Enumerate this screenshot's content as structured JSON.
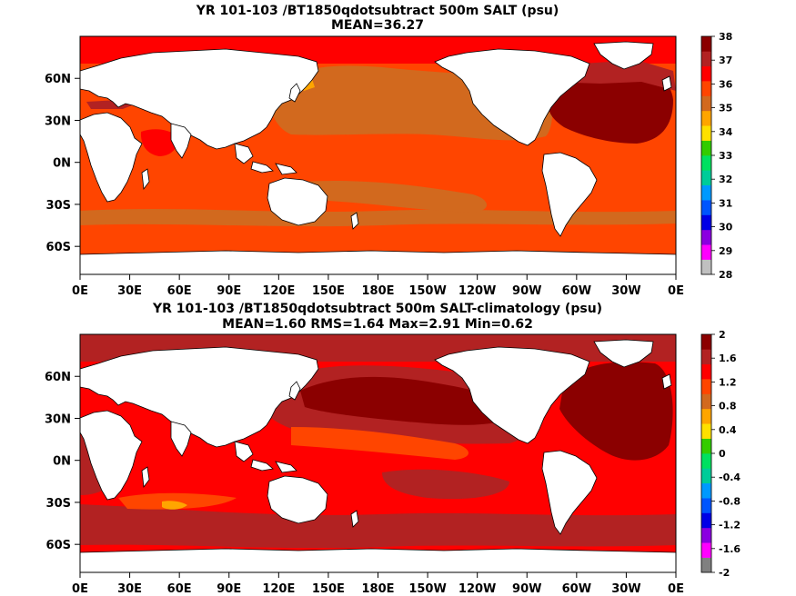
{
  "chart_data": [
    {
      "type": "heatmap",
      "title": "YR 101-103 /BT1850qdotsubtract 500m SALT (psu)",
      "subtitle": "MEAN=36.27",
      "x_ticks": [
        "0E",
        "30E",
        "60E",
        "90E",
        "120E",
        "150E",
        "180E",
        "150W",
        "120W",
        "90W",
        "60W",
        "30W",
        "0E"
      ],
      "y_ticks": [
        "60N",
        "30N",
        "0N",
        "30S",
        "60S"
      ],
      "y_tick_values": [
        60,
        30,
        0,
        -30,
        -60
      ],
      "xlim": [
        0,
        360
      ],
      "ylim": [
        -80,
        90
      ],
      "colorbar": {
        "labels": [
          "38",
          "37",
          "36",
          "35",
          "34",
          "33",
          "32",
          "31",
          "30",
          "29",
          "28"
        ],
        "colors": [
          "#c0c0c0",
          "#ff00ff",
          "#8b00e0",
          "#0000e6",
          "#0055ff",
          "#0099ff",
          "#00cc99",
          "#00e060",
          "#33cc00",
          "#ffe000",
          "#ffa500",
          "#d2691e",
          "#ff4500",
          "#ff0000",
          "#b22222",
          "#8b0000"
        ]
      },
      "regions": [
        {
          "name": "ocean background",
          "value": 36.6,
          "color": "#ff4500"
        },
        {
          "name": "north pacific",
          "value": 35.6,
          "color": "#d2691e"
        },
        {
          "name": "southern ocean band",
          "value": 35.8,
          "color": "#d2691e"
        },
        {
          "name": "north atlantic",
          "value": 37.6,
          "color": "#8b0000"
        },
        {
          "name": "arabian sea",
          "value": 37.0,
          "color": "#ff0000"
        },
        {
          "name": "arctic",
          "value": 37.0,
          "color": "#ff0000"
        }
      ]
    },
    {
      "type": "heatmap",
      "title": "YR 101-103 /BT1850qdotsubtract 500m SALT-climatology (psu)",
      "subtitle": "MEAN=1.60   RMS=1.64   Max=2.91   Min=0.62",
      "x_ticks": [
        "0E",
        "30E",
        "60E",
        "90E",
        "120E",
        "150E",
        "180E",
        "150W",
        "120W",
        "90W",
        "60W",
        "30W",
        "0E"
      ],
      "y_ticks": [
        "60N",
        "30N",
        "0N",
        "30S",
        "60S"
      ],
      "y_tick_values": [
        60,
        30,
        0,
        -30,
        -60
      ],
      "xlim": [
        0,
        360
      ],
      "ylim": [
        -80,
        90
      ],
      "colorbar": {
        "labels": [
          "2",
          "1.6",
          "1.2",
          "0.8",
          "0.4",
          "0",
          "-0.4",
          "-0.8",
          "-1.2",
          "-1.6",
          "-2"
        ],
        "colors": [
          "#808080",
          "#ff00ff",
          "#8b00e0",
          "#0000e6",
          "#0055ff",
          "#0099ff",
          "#00cc99",
          "#00e060",
          "#33cc00",
          "#ffe000",
          "#ffa500",
          "#d2691e",
          "#ff4500",
          "#ff0000",
          "#b22222",
          "#8b0000"
        ]
      },
      "regions": [
        {
          "name": "ocean background",
          "value": 1.5,
          "color": "#ff0000"
        },
        {
          "name": "north pacific",
          "value": 1.8,
          "color": "#b22222"
        },
        {
          "name": "north pacific core",
          "value": 2.0,
          "color": "#8b0000"
        },
        {
          "name": "north atlantic",
          "value": 2.2,
          "color": "#8b0000"
        },
        {
          "name": "southern ocean",
          "value": 1.7,
          "color": "#b22222"
        },
        {
          "name": "indian ocean tongue",
          "value": 1.2,
          "color": "#ff4500"
        }
      ]
    }
  ]
}
